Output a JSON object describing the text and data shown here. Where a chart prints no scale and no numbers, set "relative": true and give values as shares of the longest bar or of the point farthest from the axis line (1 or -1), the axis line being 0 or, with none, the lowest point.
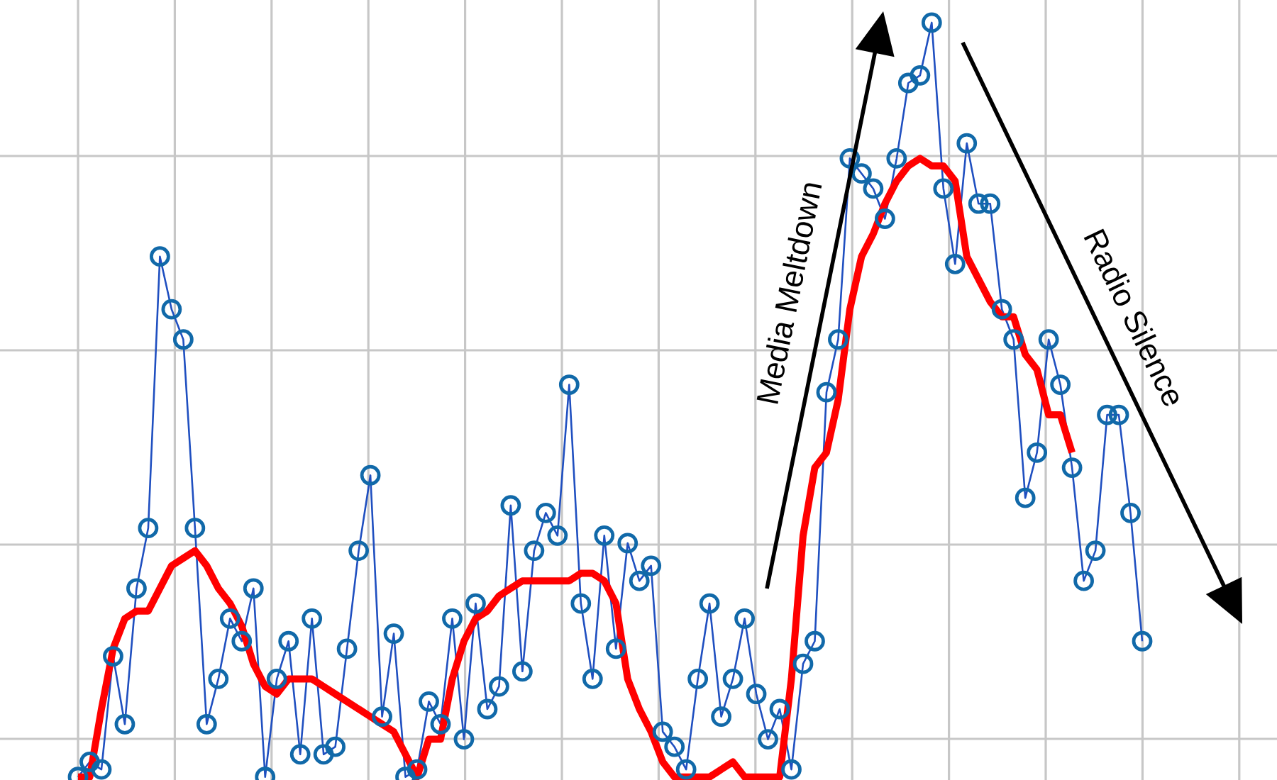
{
  "chart_data": {
    "type": "line",
    "relative": true,
    "grid": true,
    "marker": "circle",
    "categories": [
      null,
      null,
      null,
      null,
      null,
      null,
      null,
      null,
      null,
      null,
      null,
      null,
      null,
      null,
      null,
      null,
      null,
      null,
      null,
      null,
      null,
      null,
      null,
      null,
      null,
      null,
      null,
      null,
      null,
      null,
      null,
      null,
      null,
      null,
      null,
      null,
      null,
      null,
      null,
      null,
      null,
      null,
      null,
      null,
      null,
      null,
      null,
      null,
      null,
      null,
      null,
      null,
      null,
      null,
      null,
      null,
      null,
      null,
      null,
      null,
      null,
      null,
      null,
      null,
      null,
      null,
      null,
      null,
      null,
      null,
      null,
      null,
      null,
      null,
      null,
      null,
      null,
      null,
      null,
      null,
      null,
      null,
      null,
      null,
      null,
      null,
      null,
      null,
      null,
      null,
      null,
      null
    ],
    "series": [
      {
        "color": "#1f4fc0",
        "values": [
          0.0,
          0.02,
          0.01,
          0.16,
          0.07,
          0.25,
          0.33,
          0.69,
          0.62,
          0.58,
          0.33,
          0.07,
          0.13,
          0.21,
          0.18,
          0.25,
          0.0,
          0.13,
          0.18,
          0.03,
          0.21,
          0.03,
          0.04,
          0.17,
          0.3,
          0.4,
          0.08,
          0.19,
          0.0,
          0.01,
          0.1,
          0.07,
          0.21,
          0.05,
          0.23,
          0.09,
          0.12,
          0.36,
          0.14,
          0.3,
          0.35,
          0.32,
          0.52,
          0.23,
          0.13,
          0.32,
          0.17,
          0.31,
          0.26,
          0.28,
          0.06,
          0.04,
          0.01,
          0.13,
          0.23,
          0.08,
          0.13,
          0.21,
          0.11,
          0.05,
          0.09,
          0.01,
          0.15,
          0.18,
          0.51,
          0.58,
          0.82,
          0.8,
          0.78,
          0.74,
          0.82,
          0.92,
          0.93,
          1.0,
          0.78,
          0.68,
          0.84,
          0.76,
          0.76,
          0.62,
          0.58,
          0.37,
          0.43,
          0.58,
          0.52,
          0.41,
          0.26,
          0.3,
          0.48,
          0.48,
          0.35,
          0.18
        ]
      },
      {
        "color": "#ff0000",
        "marker": "none",
        "values": [
          0.0,
          0.0,
          0.09,
          0.17,
          0.21,
          0.22,
          0.22,
          0.25,
          0.28,
          0.29,
          0.3,
          0.28,
          0.25,
          0.23,
          0.2,
          0.15,
          0.12,
          0.11,
          0.13,
          0.13,
          0.13,
          0.12,
          0.11,
          0.1,
          0.09,
          0.08,
          0.07,
          0.06,
          0.03,
          0.0,
          0.05,
          0.05,
          0.13,
          0.18,
          0.21,
          0.22,
          0.24,
          0.25,
          0.26,
          0.26,
          0.26,
          0.26,
          0.26,
          0.27,
          0.27,
          0.26,
          0.23,
          0.13,
          0.09,
          0.06,
          0.02,
          0.0,
          0.0,
          0.0,
          0.0,
          0.01,
          0.02,
          0.0,
          0.0,
          0.0,
          0.0,
          0.13,
          0.32,
          0.41,
          0.43,
          0.5,
          0.62,
          0.69,
          0.72,
          0.76,
          0.79,
          0.81,
          0.82,
          0.81,
          0.81,
          0.79,
          0.69,
          0.66,
          0.63,
          0.61,
          0.61,
          0.56,
          0.54,
          0.48,
          0.48,
          0.43,
          null,
          null,
          null,
          null,
          null,
          null
        ]
      }
    ],
    "annotations": [
      "Media Meltdown",
      "Radio Silence"
    ]
  }
}
